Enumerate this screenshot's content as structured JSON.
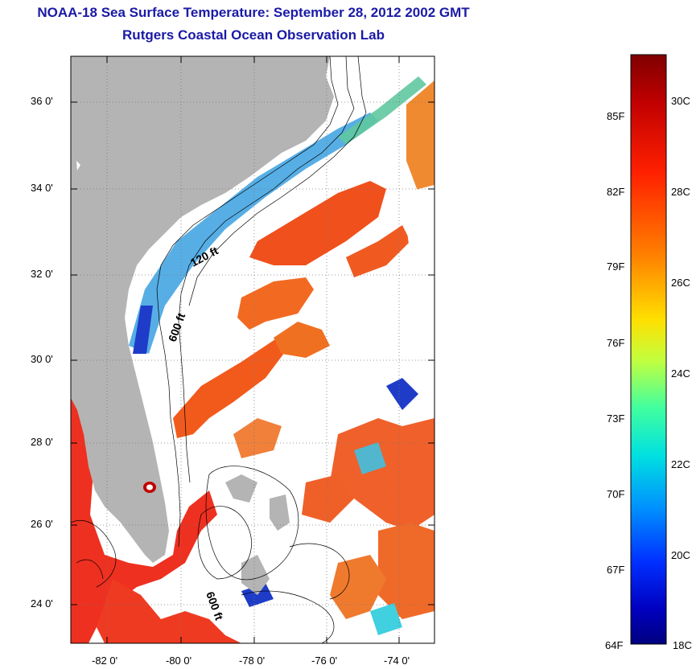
{
  "title": "NOAA-18 Sea Surface Temperature:  September 28, 2012 2002 GMT",
  "subtitle": "Rutgers Coastal Ocean Observation Lab",
  "lat_ticks": [
    "36 0'",
    "34 0'",
    "32 0'",
    "30 0'",
    "28 0'",
    "26 0'",
    "24 0'"
  ],
  "lon_ticks": [
    "-82 0'",
    "-80 0'",
    "-78 0'",
    "-76 0'",
    "-74 0'"
  ],
  "contour_labels": [
    "120 ft",
    "600 ft",
    "600 ft"
  ],
  "colorbar": {
    "fahrenheit_labels": [
      "85F",
      "82F",
      "79F",
      "76F",
      "73F",
      "70F",
      "67F",
      "64F"
    ],
    "celsius_labels": [
      "30C",
      "28C",
      "26C",
      "24C",
      "22C",
      "20C",
      "18C"
    ],
    "colors": [
      "#7f0000",
      "#c00000",
      "#ff2000",
      "#ff7000",
      "#ffc000",
      "#ffff00",
      "#80ff60",
      "#00e0d0",
      "#00a0ff",
      "#0040ff",
      "#0000c0",
      "#00007f"
    ]
  },
  "colors": {
    "land": "#b4b4b4",
    "title": "#1a1aa6",
    "warm_water": "#e8381c",
    "orange_water": "#f06a1c",
    "cool_water": "#1e3cc8",
    "cloud": "#ffffff"
  }
}
